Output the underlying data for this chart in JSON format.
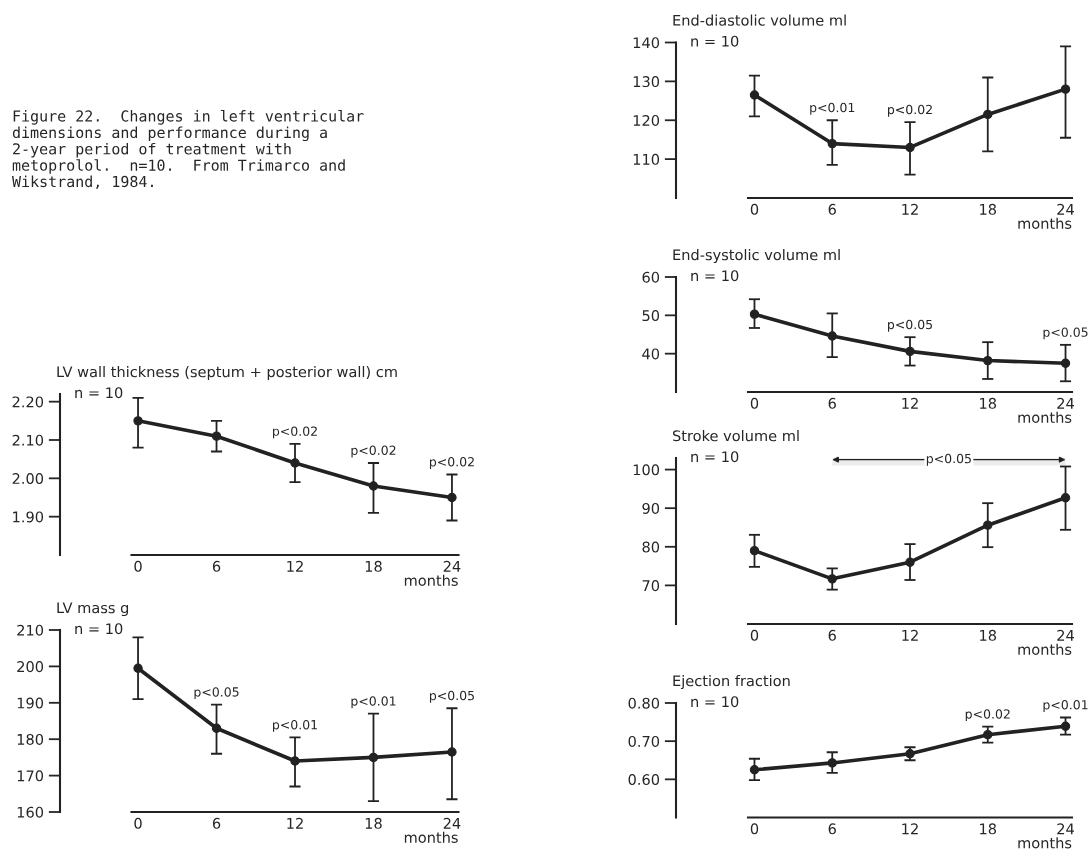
{
  "chart_data": [
    {
      "type": "other",
      "annotations": [
        "Figure 22.  Changes in left ventricular\ndimensions and performance during a\n2-year period of treatment with\nmetoprolol.  n=10.  From Trimarco and\nWikstrand, 1984."
      ]
    },
    {
      "type": "line",
      "title": "LV wall thickness (septum + posterior wall) cm",
      "xlabel": "months",
      "x": [
        0,
        6,
        12,
        18,
        24
      ],
      "xlim": [
        -0.5,
        24.5
      ],
      "xticks": [
        0,
        6,
        12,
        18,
        24
      ],
      "ylim": [
        1.8,
        2.22
      ],
      "yticks": [
        {
          "value": 1.9,
          "label": "1.90"
        },
        {
          "value": 2.0,
          "label": "2.00"
        },
        {
          "value": 2.1,
          "label": "2.10"
        },
        {
          "value": 2.2,
          "label": "2.20"
        }
      ],
      "marker": "circle",
      "series": [
        {
          "color": "#222222",
          "values": [
            2.15,
            2.11,
            2.04,
            1.98,
            1.95
          ],
          "errors": [
            [
              2.08,
              2.21
            ],
            [
              2.07,
              2.15
            ],
            [
              1.99,
              2.09
            ],
            [
              1.91,
              2.04
            ],
            [
              1.89,
              2.01
            ]
          ]
        }
      ],
      "annotations": [
        "n = 10",
        {
          "text": "p<0.02",
          "x": 12,
          "y": 2.09
        },
        {
          "text": "p<0.02",
          "x": 18,
          "y": 2.04
        },
        {
          "text": "p<0.02",
          "x": 24,
          "y": 2.01
        }
      ]
    },
    {
      "type": "line",
      "title": "LV mass g",
      "xlabel": "months",
      "x": [
        0,
        6,
        12,
        18,
        24
      ],
      "xlim": [
        -0.5,
        24.5
      ],
      "xticks": [
        0,
        6,
        12,
        18,
        24
      ],
      "ylim": [
        160,
        210
      ],
      "yticks": [
        160,
        170,
        180,
        190,
        200,
        210
      ],
      "marker": "circle",
      "series": [
        {
          "color": "#222222",
          "values": [
            199.5,
            183,
            174,
            175,
            176.5
          ],
          "errors": [
            [
              191,
              208
            ],
            [
              176,
              189.5
            ],
            [
              167,
              180.5
            ],
            [
              163,
              187
            ],
            [
              163.5,
              188.5
            ]
          ]
        }
      ],
      "annotations": [
        "n = 10",
        {
          "text": "p<0.05",
          "x": 6,
          "y": 189.5
        },
        {
          "text": "p<0.01",
          "x": 12,
          "y": 180.5
        },
        {
          "text": "p<0.01",
          "x": 18,
          "y": 187
        },
        {
          "text": "p<0.05",
          "x": 24,
          "y": 188.5
        }
      ]
    },
    {
      "type": "line",
      "title": "End-diastolic volume ml",
      "xlabel": "months",
      "x": [
        0,
        6,
        12,
        18,
        24
      ],
      "xlim": [
        -0.5,
        24.5
      ],
      "xticks": [
        0,
        6,
        12,
        18,
        24
      ],
      "ylim": [
        100,
        140
      ],
      "yticks": [
        110,
        120,
        130,
        140
      ],
      "marker": "circle",
      "series": [
        {
          "color": "#222222",
          "values": [
            126.5,
            114,
            113,
            121.5,
            128
          ],
          "errors": [
            [
              121,
              131.5
            ],
            [
              108.5,
              120
            ],
            [
              106,
              119.5
            ],
            [
              112,
              131
            ],
            [
              115.5,
              139
            ]
          ]
        }
      ],
      "annotations": [
        "n = 10",
        {
          "text": "p<0.01",
          "x": 6,
          "y": 120
        },
        {
          "text": "p<0.02",
          "x": 12,
          "y": 119.5
        }
      ]
    },
    {
      "type": "line",
      "title": "End-systolic volume ml",
      "xlabel": "months",
      "x": [
        0,
        6,
        12,
        18,
        24
      ],
      "xlim": [
        -0.5,
        24.5
      ],
      "xticks": [
        0,
        6,
        12,
        18,
        24
      ],
      "ylim": [
        30,
        60
      ],
      "yticks": [
        40,
        50,
        60
      ],
      "marker": "circle",
      "series": [
        {
          "color": "#222222",
          "values": [
            50.3,
            44.6,
            40.6,
            38.2,
            37.5
          ],
          "errors": [
            [
              46.7,
              54.2
            ],
            [
              39.1,
              50.5
            ],
            [
              36.9,
              44.3
            ],
            [
              33.4,
              43
            ],
            [
              32.8,
              42.3
            ]
          ]
        }
      ],
      "annotations": [
        "n = 10",
        {
          "text": "p<0.05",
          "x": 12,
          "y": 44.3
        },
        {
          "text": "p<0.05",
          "x": 24,
          "y": 42.3
        }
      ]
    },
    {
      "type": "line",
      "title": "Stroke volume ml",
      "xlabel": "months",
      "x": [
        0,
        6,
        12,
        18,
        24
      ],
      "xlim": [
        -0.5,
        24.5
      ],
      "xticks": [
        0,
        6,
        12,
        18,
        24
      ],
      "ylim": [
        60,
        103
      ],
      "yticks": [
        70,
        80,
        90,
        100
      ],
      "marker": "circle",
      "series": [
        {
          "color": "#222222",
          "values": [
            79,
            71.7,
            76,
            85.6,
            92.7
          ],
          "errors": [
            [
              74.8,
              83.1
            ],
            [
              68.9,
              74.4
            ],
            [
              71.4,
              80.7
            ],
            [
              79.9,
              91.3
            ],
            [
              84.4,
              100.8
            ]
          ]
        }
      ],
      "bands": [
        {
          "axis": "x",
          "from": 6,
          "to": 24,
          "label": "p<0.05"
        }
      ],
      "annotations": [
        "n = 10"
      ]
    },
    {
      "type": "line",
      "title": "Ejection fraction",
      "xlabel": "months",
      "x": [
        0,
        6,
        12,
        18,
        24
      ],
      "xlim": [
        -0.5,
        24.5
      ],
      "xticks": [
        0,
        6,
        12,
        18,
        24
      ],
      "ylim": [
        0.5,
        0.8
      ],
      "yticks": [
        {
          "value": 0.6,
          "label": "0.60"
        },
        {
          "value": 0.7,
          "label": "0.70"
        },
        {
          "value": 0.8,
          "label": "0.80"
        }
      ],
      "marker": "circle",
      "series": [
        {
          "color": "#222222",
          "values": [
            0.625,
            0.643,
            0.667,
            0.717,
            0.739
          ],
          "errors": [
            [
              0.598,
              0.654
            ],
            [
              0.617,
              0.671
            ],
            [
              0.65,
              0.684
            ],
            [
              0.696,
              0.738
            ],
            [
              0.717,
              0.762
            ]
          ]
        }
      ],
      "annotations": [
        "n = 10",
        {
          "text": "p<0.02",
          "x": 18,
          "y": 0.738
        },
        {
          "text": "p<0.01",
          "x": 24,
          "y": 0.762
        }
      ]
    }
  ]
}
